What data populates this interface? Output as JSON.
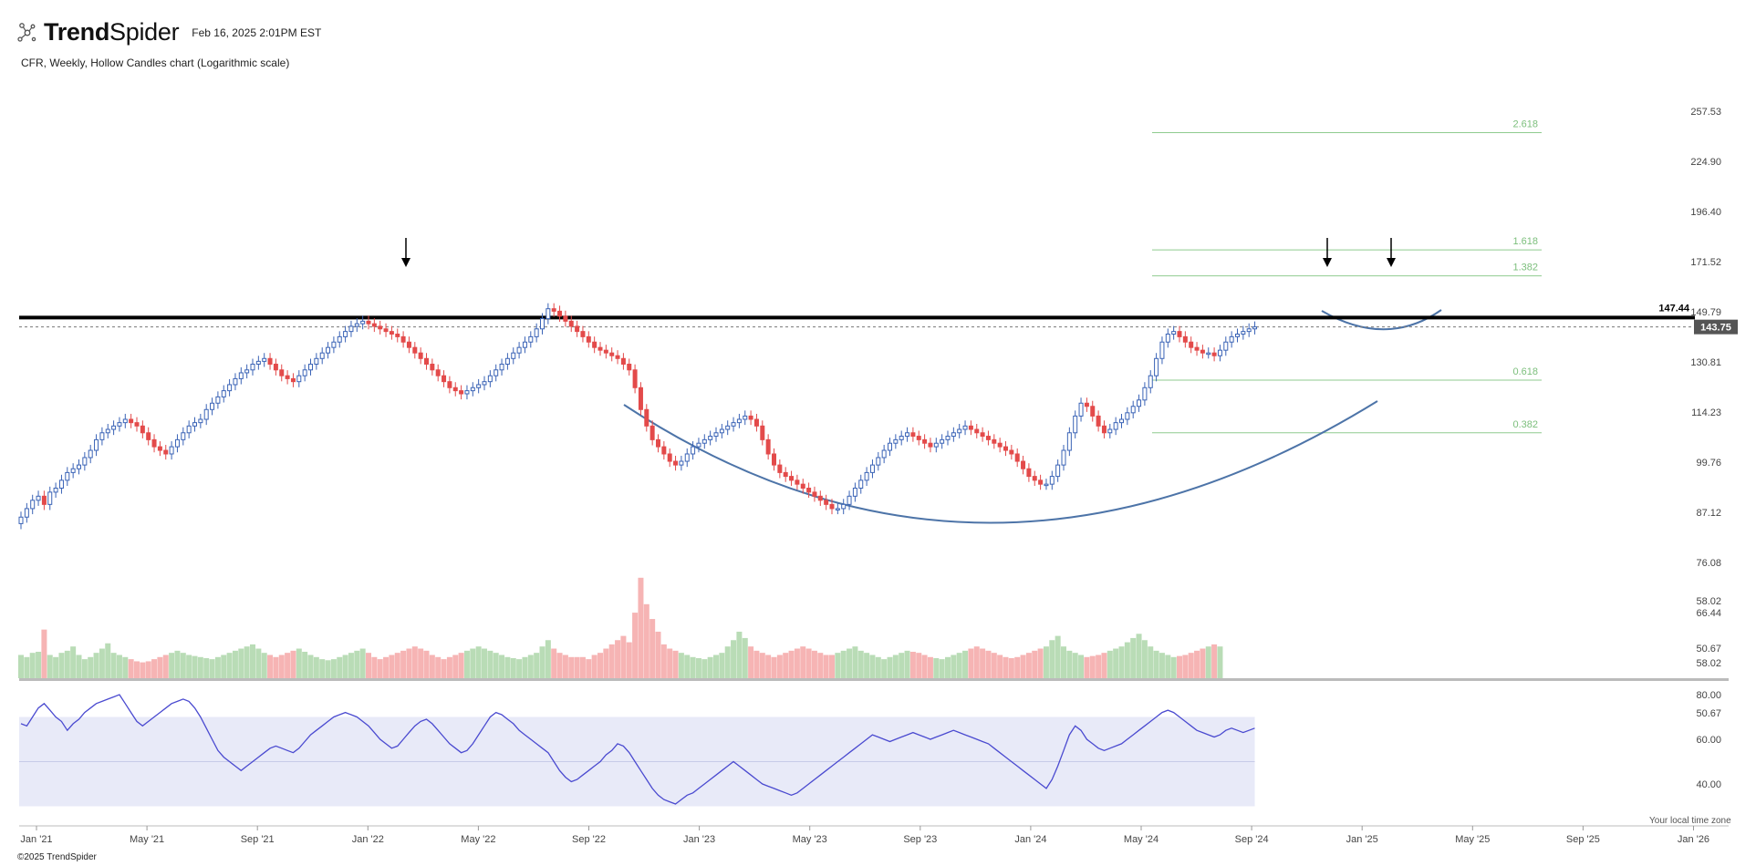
{
  "header": {
    "brand_first": "Trend",
    "brand_second": "Spider",
    "timestamp": "Feb 16, 2025 2:01PM EST",
    "subtitle": "CFR, Weekly, Hollow Candles chart (Logarithmic scale)"
  },
  "footer": {
    "copyright": "©2025 TrendSpider",
    "timezone_note": "Your local time zone"
  },
  "colors": {
    "up": "#3a63b6",
    "down": "#e34a4a",
    "vol_up": "#b9dcb6",
    "vol_down": "#f6b4b4",
    "rsi_line": "#4a4ad0",
    "rsi_band": "#e8eaf8",
    "fib": "#8fcb8f",
    "fib_text": "#7cbf7c",
    "arc": "#4d74a8",
    "resistance": "#000000"
  },
  "chart_data": {
    "type": "candlestick",
    "symbol": "CFR",
    "interval": "Weekly",
    "scale": "log",
    "x_ticks": [
      "Jan '21",
      "May '21",
      "Sep '21",
      "Jan '22",
      "May '22",
      "Sep '22",
      "Jan '23",
      "May '23",
      "Sep '23",
      "Jan '24",
      "May '24",
      "Sep '24",
      "Jan '25",
      "May '25",
      "Sep '25",
      "Jan '26"
    ],
    "y_ticks": [
      257.53,
      224.9,
      196.4,
      171.52,
      149.79,
      130.81,
      114.23,
      99.76,
      87.12,
      76.08,
      66.44,
      58.02,
      50.67
    ],
    "y_tick_labels": [
      "257.53",
      "224.90",
      "196.40",
      "171.52",
      "149.79",
      "130.81",
      "114.23",
      "99.76",
      "87.12",
      "76.08",
      "66.44",
      "58.02",
      "50.67"
    ],
    "last_price": 143.75,
    "last_price_label": "143.75",
    "resistance_level": 147.44,
    "resistance_label": "147.44",
    "fib_levels": [
      {
        "label": "2.618",
        "value": 243
      },
      {
        "label": "1.618",
        "value": 177
      },
      {
        "label": "1.382",
        "value": 165
      },
      {
        "label": "0.618",
        "value": 124.5
      },
      {
        "label": "0.382",
        "value": 108
      }
    ],
    "closes": [
      86,
      88,
      90,
      91,
      89,
      92,
      93,
      95,
      97,
      98,
      99,
      101,
      103,
      106,
      108,
      109,
      110,
      111,
      112,
      111,
      110,
      108,
      106,
      104,
      103,
      102,
      104,
      106,
      108,
      110,
      111,
      112,
      115,
      117,
      119,
      121,
      123,
      125,
      127,
      128,
      130,
      131,
      132,
      130,
      128,
      126,
      125,
      124,
      126,
      128,
      130,
      132,
      134,
      136,
      138,
      140,
      142,
      144,
      145,
      146,
      145,
      144,
      143,
      142,
      141,
      140,
      138,
      136,
      134,
      132,
      130,
      128,
      126,
      124,
      122,
      121,
      120,
      121,
      122,
      123,
      124,
      126,
      128,
      130,
      132,
      134,
      136,
      138,
      140,
      143,
      147,
      151,
      150,
      148,
      146,
      144,
      142,
      140,
      138,
      136,
      135,
      134,
      133,
      132,
      130,
      128,
      122,
      115,
      110,
      106,
      104,
      102,
      100,
      99,
      100,
      102,
      104,
      105,
      106,
      107,
      108,
      109,
      110,
      111,
      112,
      113,
      112,
      110,
      106,
      102,
      99,
      97,
      96,
      95,
      94,
      93,
      92,
      91,
      90,
      89,
      88,
      88,
      89,
      91,
      93,
      95,
      97,
      99,
      101,
      103,
      105,
      106,
      107,
      108,
      107,
      106,
      105,
      104,
      105,
      106,
      107,
      108,
      109,
      110,
      109,
      108,
      107,
      106,
      105,
      104,
      103,
      102,
      100,
      98,
      96,
      95,
      94,
      94,
      96,
      99,
      103,
      108,
      113,
      117,
      116,
      113,
      110,
      108,
      109,
      111,
      112,
      114,
      116,
      118,
      122,
      126,
      132,
      138,
      141,
      142,
      140,
      138,
      136,
      135,
      134,
      134,
      133,
      135,
      138,
      140,
      141,
      142,
      143,
      143.75
    ],
    "rsi": {
      "ticks": [
        80,
        60,
        40
      ],
      "tick_labels": [
        "80.00",
        "60.00",
        "40.00"
      ],
      "band": [
        70,
        30
      ],
      "mid": 50,
      "values": [
        67,
        66,
        70,
        74,
        76,
        73,
        70,
        68,
        64,
        67,
        69,
        72,
        74,
        76,
        77,
        78,
        79,
        80,
        76,
        72,
        68,
        66,
        68,
        70,
        72,
        74,
        76,
        77,
        78,
        77,
        74,
        70,
        65,
        60,
        55,
        52,
        50,
        48,
        46,
        48,
        50,
        52,
        54,
        56,
        57,
        56,
        55,
        54,
        56,
        59,
        62,
        64,
        66,
        68,
        70,
        71,
        72,
        71,
        70,
        68,
        66,
        63,
        60,
        58,
        56,
        57,
        60,
        63,
        66,
        68,
        69,
        67,
        64,
        61,
        58,
        56,
        54,
        55,
        58,
        62,
        66,
        70,
        72,
        71,
        69,
        67,
        64,
        62,
        60,
        58,
        56,
        54,
        50,
        46,
        43,
        41,
        42,
        44,
        46,
        48,
        50,
        53,
        55,
        58,
        57,
        54,
        50,
        46,
        42,
        38,
        35,
        33,
        32,
        31,
        33,
        35,
        36,
        38,
        40,
        42,
        44,
        46,
        48,
        50,
        48,
        46,
        44,
        42,
        40,
        39,
        38,
        37,
        36,
        35,
        36,
        38,
        40,
        42,
        44,
        46,
        48,
        50,
        52,
        54,
        56,
        58,
        60,
        62,
        61,
        60,
        59,
        60,
        61,
        62,
        63,
        62,
        61,
        60,
        61,
        62,
        63,
        64,
        63,
        62,
        61,
        60,
        59,
        58,
        56,
        54,
        52,
        50,
        48,
        46,
        44,
        42,
        40,
        38,
        42,
        48,
        55,
        62,
        66,
        64,
        60,
        58,
        56,
        55,
        56,
        57,
        58,
        60,
        62,
        64,
        66,
        68,
        70,
        72,
        73,
        72,
        70,
        68,
        66,
        64,
        63,
        62,
        61,
        62,
        64,
        65,
        64,
        63,
        64,
        65
      ]
    },
    "volume": {
      "scale_max": 100,
      "values": [
        22,
        20,
        24,
        25,
        46,
        22,
        20,
        24,
        26,
        30,
        22,
        18,
        20,
        24,
        28,
        33,
        24,
        22,
        20,
        18,
        16,
        15,
        16,
        18,
        20,
        22,
        24,
        26,
        24,
        22,
        21,
        20,
        19,
        18,
        20,
        22,
        24,
        26,
        28,
        30,
        32,
        28,
        24,
        22,
        20,
        22,
        24,
        26,
        28,
        25,
        22,
        20,
        18,
        17,
        18,
        20,
        22,
        24,
        26,
        28,
        24,
        20,
        18,
        20,
        22,
        24,
        26,
        28,
        30,
        28,
        26,
        22,
        20,
        18,
        20,
        22,
        24,
        26,
        28,
        30,
        28,
        26,
        24,
        22,
        20,
        19,
        18,
        20,
        22,
        24,
        30,
        36,
        28,
        24,
        22,
        20,
        20,
        20,
        18,
        22,
        24,
        28,
        32,
        36,
        40,
        34,
        62,
        95,
        70,
        56,
        44,
        32,
        28,
        26,
        24,
        22,
        20,
        19,
        18,
        20,
        22,
        24,
        30,
        36,
        44,
        38,
        30,
        26,
        24,
        22,
        20,
        22,
        24,
        26,
        28,
        30,
        28,
        26,
        24,
        22,
        22,
        24,
        26,
        28,
        30,
        26,
        24,
        22,
        20,
        18,
        20,
        22,
        24,
        26,
        25,
        24,
        22,
        20,
        19,
        18,
        20,
        22,
        24,
        26,
        28,
        30,
        28,
        26,
        24,
        22,
        20,
        19,
        20,
        22,
        24,
        26,
        28,
        30,
        36,
        40,
        30,
        26,
        24,
        22,
        20,
        21,
        22,
        24,
        26,
        28,
        30,
        34,
        38,
        42,
        36,
        30,
        26,
        24,
        22,
        20,
        21,
        22,
        24,
        26,
        28,
        30,
        32,
        30
      ],
      "axis_labels": [
        "58.02",
        "50.67"
      ]
    }
  }
}
